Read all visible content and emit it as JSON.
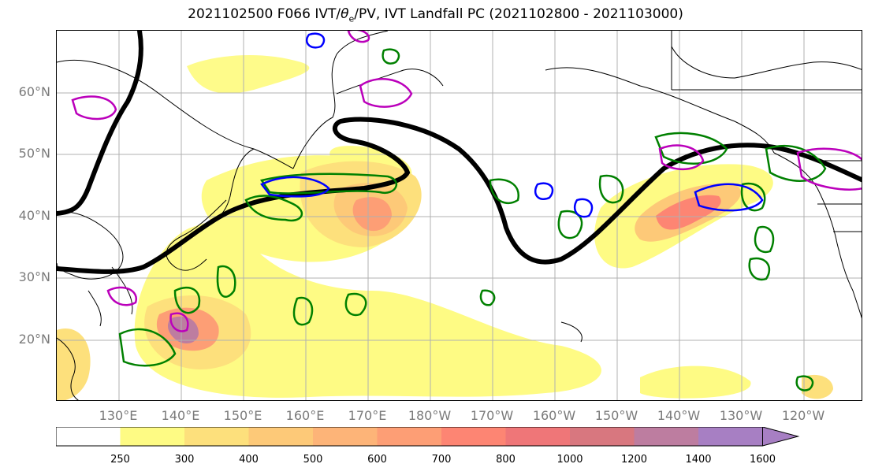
{
  "title_prefix": "2021102500 F066 IVT/",
  "title_theta": "θ",
  "title_sub": "e",
  "title_suffix": "/PV, IVT Landfall PC (2021102800 - 2021103000)",
  "lat_labels": [
    {
      "text": "60°N",
      "deg": 60
    },
    {
      "text": "50°N",
      "deg": 50
    },
    {
      "text": "40°N",
      "deg": 40
    },
    {
      "text": "30°N",
      "deg": 30
    },
    {
      "text": "20°N",
      "deg": 20
    }
  ],
  "lon_labels": [
    "130°E",
    "140°E",
    "150°E",
    "160°E",
    "170°E",
    "180°W",
    "170°W",
    "160°W",
    "150°W",
    "140°W",
    "130°W",
    "120°W"
  ],
  "colorbar": {
    "levels": [
      "250",
      "300",
      "400",
      "500",
      "600",
      "700",
      "800",
      "1000",
      "1200",
      "1400",
      "1600"
    ],
    "colors": [
      "#ffffff",
      "#fefb84",
      "#fde07c",
      "#fdc978",
      "#fdb478",
      "#fd9e75",
      "#fd8573",
      "#ef7678",
      "#d8777f",
      "#bd7da0",
      "#a77fc3"
    ]
  },
  "contour_colors": {
    "theta_e": "#000000",
    "pv": "#008000",
    "ivt_pc": "#0000ff",
    "aux": "#bb00bb"
  }
}
